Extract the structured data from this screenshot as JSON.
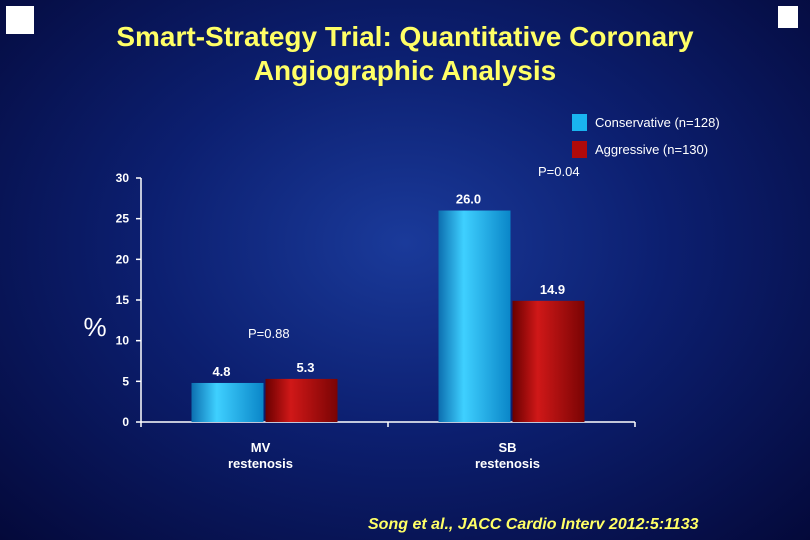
{
  "slide": {
    "title": "Smart-Strategy Trial:  Quantitative Coronary\nAngiographic Analysis",
    "citation": "Song et al., JACC Cardio Interv 2012:5:1133"
  },
  "chart_data": {
    "type": "bar",
    "categories": [
      "MV\nrestenosis",
      "SB\nrestenosis"
    ],
    "series": [
      {
        "name": "Conservative (n=128)",
        "values": [
          4.8,
          26.0
        ],
        "color": "#19b4f0"
      },
      {
        "name": "Aggressive (n=130)",
        "values": [
          5.3,
          14.9
        ],
        "color": "#b00a0a"
      }
    ],
    "data_labels": [
      [
        "4.8",
        "26.0"
      ],
      [
        "5.3",
        "14.9"
      ]
    ],
    "ylabel": "%",
    "ylim": [
      0,
      30
    ],
    "yticks": [
      0,
      5,
      10,
      15,
      20,
      25,
      30
    ],
    "legend": "top-right",
    "grid": false,
    "annotations": [
      {
        "text": "P=0.88",
        "category": 0
      },
      {
        "text": "P=0.04",
        "category": 1
      }
    ]
  }
}
